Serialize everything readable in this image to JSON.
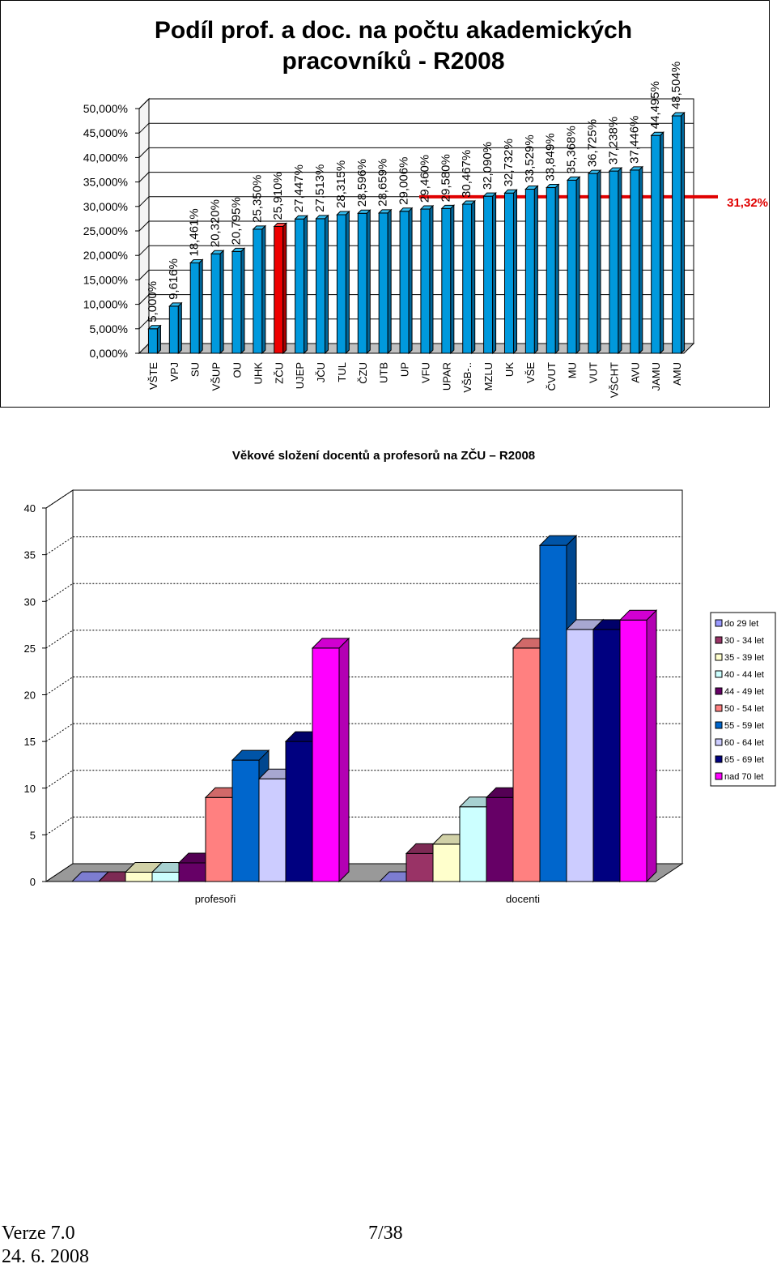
{
  "colors": {
    "bar_face": "#0099dd",
    "bar_top": "#33bbee",
    "bar_side": "#006699",
    "highlight_face": "#ee0000",
    "highlight_top": "#ff4444",
    "highlight_side": "#aa0000",
    "reference_line": "#e00000"
  },
  "chart_data": [
    {
      "type": "bar",
      "title": "Podíl prof. a doc. na počtu akademických pracovníků - R2008",
      "title_lines": [
        "Podíl prof. a doc. na počtu akademických",
        "pracovníků - R2008"
      ],
      "xlabel": "",
      "ylabel": "",
      "ylim": [
        0,
        50
      ],
      "y_ticks": [
        0,
        5,
        10,
        15,
        20,
        25,
        30,
        35,
        40,
        45,
        50
      ],
      "y_tick_labels": [
        "0,000%",
        "5,000%",
        "10,000%",
        "15,000%",
        "20,000%",
        "25,000%",
        "30,000%",
        "35,000%",
        "40,000%",
        "45,000%",
        "50,000%"
      ],
      "grid": true,
      "categories": [
        "VŠTE",
        "VPJ",
        "SU",
        "VŠUP",
        "OU",
        "UHK",
        "ZČU",
        "UJEP",
        "JČU",
        "TUL",
        "ČZU",
        "UTB",
        "UP",
        "VFU",
        "UPAR",
        "VŠB-..",
        "MZLU",
        "UK",
        "VŠE",
        "ČVUT",
        "MU",
        "VUT",
        "VŠCHT",
        "AVU",
        "JAMU",
        "AMU"
      ],
      "values": [
        5.0,
        9.616,
        18.461,
        20.32,
        20.795,
        25.35,
        25.91,
        27.447,
        27.513,
        28.315,
        28.596,
        28.659,
        29.006,
        29.46,
        29.58,
        30.467,
        32.09,
        32.732,
        33.529,
        33.849,
        35.368,
        36.725,
        37.238,
        37.446,
        44.495,
        48.504
      ],
      "data_labels": [
        "5,000%",
        "9,616%",
        "18,461%",
        "20,320%",
        "20,795%",
        "25,350%",
        "25,910%",
        "27,447%",
        "27,513%",
        "28,315%",
        "28,596%",
        "28,659%",
        "29,006%",
        "29,460%",
        "29,580%",
        "30,467%",
        "32,090%",
        "32,732%",
        "33,529%",
        "33,849%",
        "35,368%",
        "36,725%",
        "37,238%",
        "37,446%",
        "44,495%",
        "48,504%"
      ],
      "highlight_category": "ZČU",
      "reference_line": {
        "value": 31.32,
        "label": "31,32%"
      }
    },
    {
      "type": "bar",
      "title": "Věkové složení docentů a profesorů na ZČU – R2008",
      "xlabel": "",
      "ylabel": "",
      "ylim": [
        0,
        40
      ],
      "y_ticks": [
        0,
        5,
        10,
        15,
        20,
        25,
        30,
        35,
        40
      ],
      "grid": true,
      "legend_position": "right",
      "categories": [
        "profesoři",
        "docenti"
      ],
      "series": [
        {
          "name": "do 29 let",
          "color": "#9999ff",
          "values": [
            0,
            0
          ]
        },
        {
          "name": "30 - 34 let",
          "color": "#993366",
          "values": [
            0,
            3
          ]
        },
        {
          "name": "35 - 39 let",
          "color": "#ffffcc",
          "values": [
            1,
            4
          ]
        },
        {
          "name": "40 - 44 let",
          "color": "#ccffff",
          "values": [
            1,
            8
          ]
        },
        {
          "name": "44 - 49 let",
          "color": "#660066",
          "values": [
            2,
            9
          ]
        },
        {
          "name": "50 - 54 let",
          "color": "#ff8080",
          "values": [
            9,
            25
          ]
        },
        {
          "name": "55 - 59 let",
          "color": "#0066cc",
          "values": [
            13,
            36
          ]
        },
        {
          "name": "60 - 64 let",
          "color": "#ccccff",
          "values": [
            11,
            27
          ]
        },
        {
          "name": "65 - 69 let",
          "color": "#000080",
          "values": [
            15,
            27
          ]
        },
        {
          "name": "nad 70 let",
          "color": "#ff00ff",
          "values": [
            25,
            28
          ]
        }
      ]
    }
  ],
  "footer": {
    "version": "Verze 7.0",
    "date": "24. 6. 2008",
    "page": "7/38"
  }
}
